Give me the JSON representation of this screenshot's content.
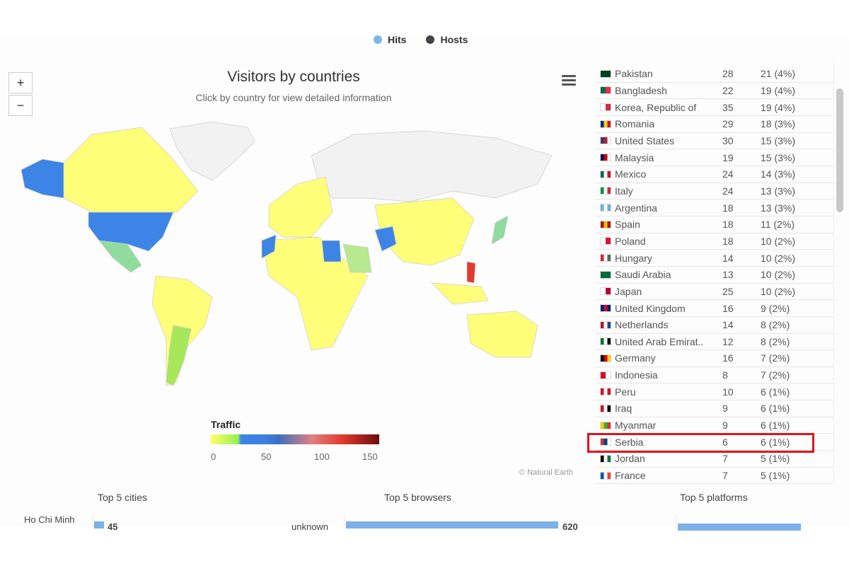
{
  "legend": {
    "items": [
      {
        "label": "Hits",
        "color": "#7cb5ec"
      },
      {
        "label": "Hosts",
        "color": "#434348"
      }
    ]
  },
  "map": {
    "title": "Visitors by countries",
    "subtitle": "Click by country for view detailed information",
    "zoom_in": "+",
    "zoom_out": "−",
    "menu_icon": "hamburger-icon",
    "color_axis": {
      "title": "Traffic",
      "ticks": [
        "0",
        "50",
        "100",
        "150"
      ],
      "range": [
        0,
        150
      ]
    },
    "credit": "© Natural Earth"
  },
  "table": {
    "rows": [
      {
        "country": "Pakistan",
        "hits": "28",
        "hosts": "21 (4%)",
        "flag": [
          "#01411c",
          "#01411c"
        ]
      },
      {
        "country": "Bangladesh",
        "hits": "22",
        "hosts": "19 (4%)",
        "flag": [
          "#006a4e",
          "#f42a41"
        ]
      },
      {
        "country": "Korea, Republic of",
        "hits": "35",
        "hosts": "19 (4%)",
        "flag": [
          "#ffffff",
          "#cd2e3a"
        ]
      },
      {
        "country": "Romania",
        "hits": "29",
        "hosts": "18 (3%)",
        "flag": [
          "#002b7f",
          "#fcd116",
          "#ce1126"
        ]
      },
      {
        "country": "United States",
        "hits": "30",
        "hosts": "15 (3%)",
        "flag": [
          "#3c3b6e",
          "#b22234",
          "#ffffff"
        ]
      },
      {
        "country": "Malaysia",
        "hits": "19",
        "hosts": "15 (3%)",
        "flag": [
          "#010066",
          "#cc0001",
          "#ffffff"
        ]
      },
      {
        "country": "Mexico",
        "hits": "24",
        "hosts": "14 (3%)",
        "flag": [
          "#006847",
          "#ffffff",
          "#ce1126"
        ]
      },
      {
        "country": "Italy",
        "hits": "24",
        "hosts": "13 (3%)",
        "flag": [
          "#009246",
          "#ffffff",
          "#ce2b37"
        ]
      },
      {
        "country": "Argentina",
        "hits": "18",
        "hosts": "13 (3%)",
        "flag": [
          "#74acdf",
          "#ffffff",
          "#74acdf"
        ]
      },
      {
        "country": "Spain",
        "hits": "18",
        "hosts": "11 (2%)",
        "flag": [
          "#aa151b",
          "#f1bf00",
          "#aa151b"
        ]
      },
      {
        "country": "Poland",
        "hits": "18",
        "hosts": "10 (2%)",
        "flag": [
          "#ffffff",
          "#dc143c"
        ]
      },
      {
        "country": "Hungary",
        "hits": "14",
        "hosts": "10 (2%)",
        "flag": [
          "#ce2939",
          "#ffffff",
          "#477050"
        ]
      },
      {
        "country": "Saudi Arabia",
        "hits": "13",
        "hosts": "10 (2%)",
        "flag": [
          "#006c35",
          "#006c35"
        ]
      },
      {
        "country": "Japan",
        "hits": "25",
        "hosts": "10 (2%)",
        "flag": [
          "#ffffff",
          "#bc002d"
        ]
      },
      {
        "country": "United Kingdom",
        "hits": "16",
        "hosts": "9 (2%)",
        "flag": [
          "#012169",
          "#c8102e",
          "#012169"
        ]
      },
      {
        "country": "Netherlands",
        "hits": "14",
        "hosts": "8 (2%)",
        "flag": [
          "#ae1c28",
          "#ffffff",
          "#21468b"
        ]
      },
      {
        "country": "United Arab Emirat..",
        "hits": "12",
        "hosts": "8 (2%)",
        "flag": [
          "#00732f",
          "#ffffff",
          "#000000"
        ]
      },
      {
        "country": "Germany",
        "hits": "16",
        "hosts": "7 (2%)",
        "flag": [
          "#000000",
          "#dd0000",
          "#ffce00"
        ]
      },
      {
        "country": "Indonesia",
        "hits": "8",
        "hosts": "7 (2%)",
        "flag": [
          "#ce1126",
          "#ffffff"
        ]
      },
      {
        "country": "Peru",
        "hits": "10",
        "hosts": "6 (1%)",
        "flag": [
          "#d91023",
          "#ffffff",
          "#d91023"
        ]
      },
      {
        "country": "Iraq",
        "hits": "9",
        "hosts": "6 (1%)",
        "flag": [
          "#ce1126",
          "#ffffff",
          "#000000"
        ]
      },
      {
        "country": "Myanmar",
        "hits": "9",
        "hosts": "6 (1%)",
        "flag": [
          "#fecb00",
          "#34b233",
          "#ea2839"
        ]
      },
      {
        "country": "Serbia",
        "hits": "6",
        "hosts": "6 (1%)",
        "flag": [
          "#c6363c",
          "#0c4076",
          "#ffffff"
        ],
        "highlighted": true
      },
      {
        "country": "Jordan",
        "hits": "7",
        "hosts": "5 (1%)",
        "flag": [
          "#000000",
          "#ffffff",
          "#007a3d"
        ]
      },
      {
        "country": "France",
        "hits": "7",
        "hosts": "5 (1%)",
        "flag": [
          "#0055a4",
          "#ffffff",
          "#ef4135"
        ]
      }
    ]
  },
  "bottom": {
    "cities": {
      "title": "Top 5 cities",
      "first_label": "Ho Chi Minh",
      "first_value": "45"
    },
    "browsers": {
      "title": "Top 5 browsers",
      "first_label": "unknown",
      "first_value": "620"
    },
    "platforms": {
      "title": "Top 5 platforms"
    }
  }
}
